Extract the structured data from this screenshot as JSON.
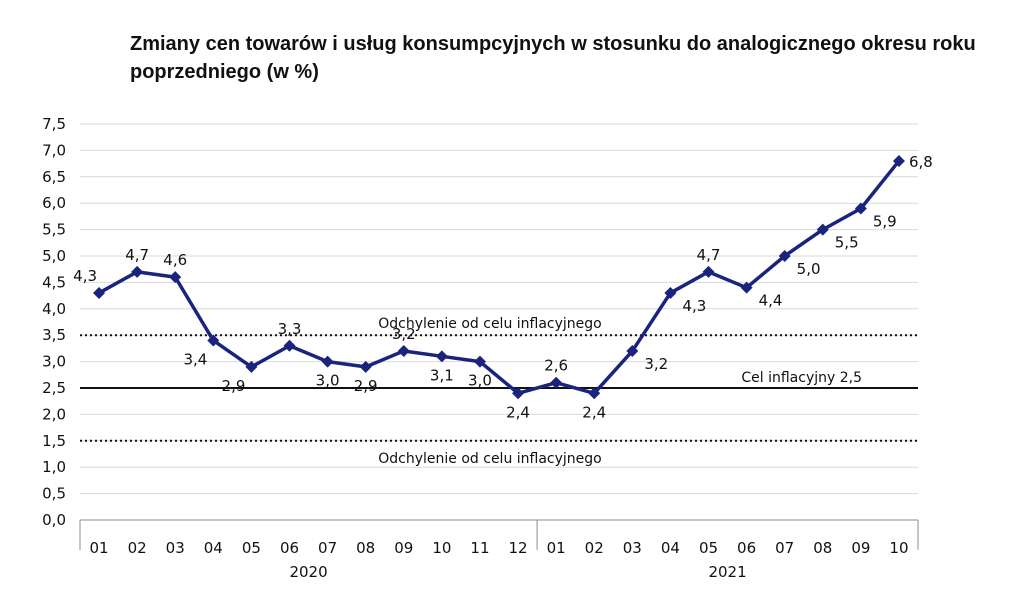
{
  "chart_data": {
    "type": "line",
    "title": "Zmiany cen towarów i usług konsumpcyjnych w stosunku do analogicznego okresu roku poprzedniego (w %)",
    "xlabel": "",
    "ylabel": "",
    "ylim": [
      0,
      7.5
    ],
    "yticks": [
      "0,0",
      "0,5",
      "1,0",
      "1,5",
      "2,0",
      "2,5",
      "3,0",
      "3,5",
      "4,0",
      "4,5",
      "5,0",
      "5,5",
      "6,0",
      "6,5",
      "7,0",
      "7,5"
    ],
    "grid": true,
    "line_color": "#1a237e",
    "categories": [
      "01",
      "02",
      "03",
      "04",
      "05",
      "06",
      "07",
      "08",
      "09",
      "10",
      "11",
      "12",
      "01",
      "02",
      "03",
      "04",
      "05",
      "06",
      "07",
      "08",
      "09",
      "10"
    ],
    "year_groups": [
      {
        "label": "2020",
        "count": 12
      },
      {
        "label": "2021",
        "count": 10
      }
    ],
    "series": [
      {
        "values": [
          4.3,
          4.7,
          4.6,
          3.4,
          2.9,
          3.3,
          3.0,
          2.9,
          3.2,
          3.1,
          3.0,
          2.4,
          2.6,
          2.4,
          3.2,
          4.3,
          4.7,
          4.4,
          5.0,
          5.5,
          5.9,
          6.8
        ],
        "labels": [
          "4,3",
          "4,7",
          "4,6",
          "3,4",
          "2,9",
          "3,3",
          "3,0",
          "2,9",
          "3,2",
          "3,1",
          "3,0",
          "2,4",
          "2,6",
          "2,4",
          "3,2",
          "4,3",
          "4,7",
          "4,4",
          "5,0",
          "5,5",
          "5,9",
          "6,8"
        ]
      }
    ],
    "reference_lines": [
      {
        "value": 3.5,
        "style": "dotted",
        "label": "Odchylenie od celu inflacyjnego"
      },
      {
        "value": 2.5,
        "style": "solid",
        "label": "Cel inflacyjny 2,5"
      },
      {
        "value": 1.5,
        "style": "dotted",
        "label": "Odchylenie od celu inflacyjnego"
      }
    ]
  }
}
